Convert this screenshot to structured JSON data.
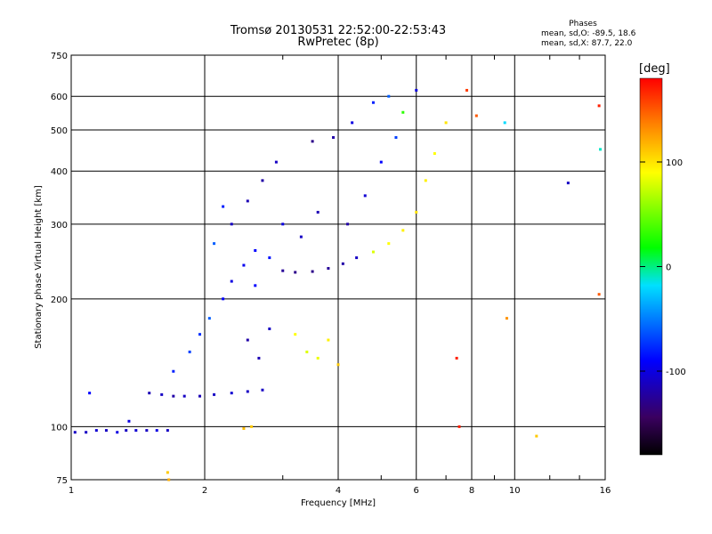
{
  "chart_data": {
    "type": "scatter",
    "title": "Tromsø 20130531 22:52:00-22:53:43",
    "subtitle": "RwPretec (8p)",
    "xlabel": "Frequency [MHz]",
    "ylabel": "Stationary phase Virtual Height [km]",
    "x_scale": "log",
    "y_scale": "log",
    "xlim": [
      1,
      16
    ],
    "ylim": [
      75,
      750
    ],
    "x_ticks": [
      1,
      2,
      4,
      6,
      8,
      10,
      16
    ],
    "x_tick_labels": [
      "1",
      "2",
      "4",
      "6",
      "8",
      "10",
      "16"
    ],
    "y_ticks": [
      75,
      100,
      200,
      300,
      400,
      500,
      600,
      750
    ],
    "y_tick_labels": [
      "75",
      "100",
      "200",
      "300",
      "400",
      "500",
      "600",
      "750"
    ],
    "grid": true,
    "stats": {
      "heading": "Phases",
      "line1": "mean, sd,O: -89.5, 18.6",
      "line2": "mean, sd,X:  87.7, 22.0"
    },
    "colorbar": {
      "label": "[deg]",
      "range": [
        -180,
        180
      ],
      "ticks": [
        100,
        0,
        -100
      ],
      "tick_labels": [
        "100",
        "0",
        "-100"
      ]
    },
    "series": [
      {
        "values": [
          {
            "x": 1.02,
            "y": 97,
            "phase": -110
          },
          {
            "x": 1.08,
            "y": 97,
            "phase": -110
          },
          {
            "x": 1.14,
            "y": 98,
            "phase": -105
          },
          {
            "x": 1.2,
            "y": 98,
            "phase": -110
          },
          {
            "x": 1.27,
            "y": 97,
            "phase": -100
          },
          {
            "x": 1.33,
            "y": 98,
            "phase": -110
          },
          {
            "x": 1.4,
            "y": 98,
            "phase": -105
          },
          {
            "x": 1.48,
            "y": 98,
            "phase": -110
          },
          {
            "x": 1.56,
            "y": 98,
            "phase": -100
          },
          {
            "x": 1.65,
            "y": 98,
            "phase": -110
          },
          {
            "x": 1.1,
            "y": 120,
            "phase": -90
          },
          {
            "x": 1.35,
            "y": 103,
            "phase": -100
          },
          {
            "x": 1.5,
            "y": 120,
            "phase": -115
          },
          {
            "x": 1.6,
            "y": 119,
            "phase": -110
          },
          {
            "x": 1.7,
            "y": 118,
            "phase": -120
          },
          {
            "x": 1.8,
            "y": 118,
            "phase": -110
          },
          {
            "x": 1.95,
            "y": 118,
            "phase": -115
          },
          {
            "x": 2.1,
            "y": 119,
            "phase": -110
          },
          {
            "x": 2.3,
            "y": 120,
            "phase": -105
          },
          {
            "x": 2.5,
            "y": 121,
            "phase": -110
          },
          {
            "x": 2.7,
            "y": 122,
            "phase": -110
          },
          {
            "x": 1.7,
            "y": 135,
            "phase": -80
          },
          {
            "x": 1.85,
            "y": 150,
            "phase": -70
          },
          {
            "x": 1.95,
            "y": 165,
            "phase": -75
          },
          {
            "x": 2.05,
            "y": 180,
            "phase": -60
          },
          {
            "x": 2.2,
            "y": 200,
            "phase": -90
          },
          {
            "x": 2.3,
            "y": 220,
            "phase": -100
          },
          {
            "x": 2.45,
            "y": 240,
            "phase": -95
          },
          {
            "x": 2.6,
            "y": 260,
            "phase": -90
          },
          {
            "x": 2.8,
            "y": 250,
            "phase": -85
          },
          {
            "x": 2.5,
            "y": 160,
            "phase": -120
          },
          {
            "x": 2.65,
            "y": 145,
            "phase": -115
          },
          {
            "x": 2.8,
            "y": 170,
            "phase": -110
          },
          {
            "x": 2.3,
            "y": 300,
            "phase": -110
          },
          {
            "x": 2.5,
            "y": 340,
            "phase": -115
          },
          {
            "x": 2.7,
            "y": 380,
            "phase": -120
          },
          {
            "x": 2.9,
            "y": 420,
            "phase": -110
          },
          {
            "x": 2.55,
            "y": 100,
            "phase": 110
          },
          {
            "x": 2.45,
            "y": 99,
            "phase": 115
          },
          {
            "x": 3.0,
            "y": 233,
            "phase": -125
          },
          {
            "x": 3.2,
            "y": 231,
            "phase": -130
          },
          {
            "x": 3.5,
            "y": 232,
            "phase": -130
          },
          {
            "x": 3.8,
            "y": 236,
            "phase": -125
          },
          {
            "x": 4.1,
            "y": 242,
            "phase": -120
          },
          {
            "x": 4.4,
            "y": 250,
            "phase": -110
          },
          {
            "x": 4.8,
            "y": 258,
            "phase": 80
          },
          {
            "x": 5.2,
            "y": 270,
            "phase": 90
          },
          {
            "x": 5.6,
            "y": 290,
            "phase": 95
          },
          {
            "x": 6.0,
            "y": 320,
            "phase": 100
          },
          {
            "x": 6.3,
            "y": 380,
            "phase": 95
          },
          {
            "x": 6.6,
            "y": 440,
            "phase": 90
          },
          {
            "x": 7.0,
            "y": 520,
            "phase": 100
          },
          {
            "x": 3.2,
            "y": 165,
            "phase": 90
          },
          {
            "x": 3.4,
            "y": 150,
            "phase": 80
          },
          {
            "x": 3.6,
            "y": 145,
            "phase": 85
          },
          {
            "x": 3.8,
            "y": 160,
            "phase": 95
          },
          {
            "x": 4.0,
            "y": 140,
            "phase": 110
          },
          {
            "x": 3.5,
            "y": 470,
            "phase": -130
          },
          {
            "x": 3.9,
            "y": 480,
            "phase": -120
          },
          {
            "x": 4.3,
            "y": 520,
            "phase": -100
          },
          {
            "x": 4.8,
            "y": 580,
            "phase": -80
          },
          {
            "x": 5.2,
            "y": 600,
            "phase": -60
          },
          {
            "x": 5.6,
            "y": 550,
            "phase": 30
          },
          {
            "x": 6.0,
            "y": 620,
            "phase": -100
          },
          {
            "x": 3.0,
            "y": 300,
            "phase": -100
          },
          {
            "x": 3.3,
            "y": 280,
            "phase": -110
          },
          {
            "x": 3.6,
            "y": 320,
            "phase": -115
          },
          {
            "x": 4.2,
            "y": 300,
            "phase": -120
          },
          {
            "x": 4.6,
            "y": 350,
            "phase": -105
          },
          {
            "x": 5.0,
            "y": 420,
            "phase": -90
          },
          {
            "x": 5.4,
            "y": 480,
            "phase": -70
          },
          {
            "x": 2.1,
            "y": 270,
            "phase": -60
          },
          {
            "x": 2.2,
            "y": 330,
            "phase": -80
          },
          {
            "x": 2.6,
            "y": 215,
            "phase": -90
          },
          {
            "x": 7.5,
            "y": 100,
            "phase": 170
          },
          {
            "x": 7.8,
            "y": 620,
            "phase": 160
          },
          {
            "x": 8.2,
            "y": 540,
            "phase": 150
          },
          {
            "x": 9.5,
            "y": 520,
            "phase": -20
          },
          {
            "x": 13.2,
            "y": 375,
            "phase": -110
          },
          {
            "x": 15.5,
            "y": 570,
            "phase": 170
          },
          {
            "x": 15.6,
            "y": 450,
            "phase": -10
          },
          {
            "x": 15.5,
            "y": 205,
            "phase": 150
          },
          {
            "x": 11.2,
            "y": 95,
            "phase": 110
          },
          {
            "x": 9.6,
            "y": 180,
            "phase": 130
          },
          {
            "x": 7.4,
            "y": 145,
            "phase": 170
          },
          {
            "x": 1.65,
            "y": 78,
            "phase": 110
          },
          {
            "x": 1.66,
            "y": 75,
            "phase": 120
          }
        ]
      }
    ]
  }
}
